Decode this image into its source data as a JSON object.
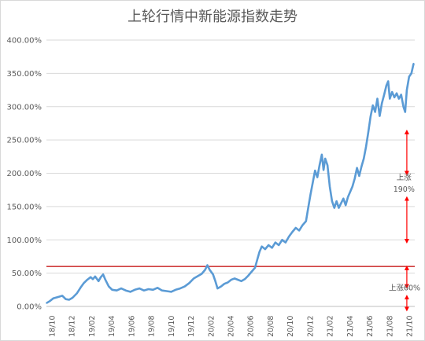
{
  "chart_data": {
    "type": "line",
    "title": "上轮行情中新能源指数走势",
    "xlabel": "",
    "ylabel": "",
    "ylim": [
      0,
      400
    ],
    "y_ticks": [
      "0.00%",
      "50.00%",
      "100.00%",
      "150.00%",
      "200.00%",
      "250.00%",
      "300.00%",
      "350.00%",
      "400.00%"
    ],
    "y_tick_values": [
      0,
      50,
      100,
      150,
      200,
      250,
      300,
      350,
      400
    ],
    "x_ticks": [
      "18/10",
      "18/12",
      "19/02",
      "19/04",
      "19/06",
      "19/08",
      "19/10",
      "19/12",
      "20/02",
      "20/04",
      "20/06",
      "20/08",
      "20/10",
      "20/12",
      "21/02",
      "21/04",
      "21/06",
      "21/08",
      "21/10"
    ],
    "grid": "horizontal",
    "legend": "none",
    "colors": {
      "line": "#5b9bd5",
      "reference": "#c00000",
      "arrow": "#ff0000",
      "grid": "#d9d9d9"
    },
    "series": [
      {
        "values": [
          {
            "x": 0,
            "y": 5
          },
          {
            "x": 0.3,
            "y": 8
          },
          {
            "x": 0.6,
            "y": 12
          },
          {
            "x": 1.0,
            "y": 14
          },
          {
            "x": 1.4,
            "y": 16
          },
          {
            "x": 1.7,
            "y": 11
          },
          {
            "x": 2.0,
            "y": 10
          },
          {
            "x": 2.3,
            "y": 13
          },
          {
            "x": 2.7,
            "y": 20
          },
          {
            "x": 3.0,
            "y": 28
          },
          {
            "x": 3.3,
            "y": 35
          },
          {
            "x": 3.6,
            "y": 40
          },
          {
            "x": 3.9,
            "y": 44
          },
          {
            "x": 4.1,
            "y": 41
          },
          {
            "x": 4.3,
            "y": 45
          },
          {
            "x": 4.6,
            "y": 38
          },
          {
            "x": 4.8,
            "y": 44
          },
          {
            "x": 5.0,
            "y": 48
          },
          {
            "x": 5.2,
            "y": 40
          },
          {
            "x": 5.5,
            "y": 30
          },
          {
            "x": 5.8,
            "y": 25
          },
          {
            "x": 6.2,
            "y": 24
          },
          {
            "x": 6.6,
            "y": 27
          },
          {
            "x": 7.0,
            "y": 24
          },
          {
            "x": 7.4,
            "y": 22
          },
          {
            "x": 7.8,
            "y": 25
          },
          {
            "x": 8.2,
            "y": 27
          },
          {
            "x": 8.6,
            "y": 24
          },
          {
            "x": 9.0,
            "y": 26
          },
          {
            "x": 9.4,
            "y": 25
          },
          {
            "x": 9.8,
            "y": 28
          },
          {
            "x": 10.2,
            "y": 24
          },
          {
            "x": 10.6,
            "y": 23
          },
          {
            "x": 11.0,
            "y": 22
          },
          {
            "x": 11.4,
            "y": 25
          },
          {
            "x": 11.8,
            "y": 27
          },
          {
            "x": 12.2,
            "y": 30
          },
          {
            "x": 12.6,
            "y": 35
          },
          {
            "x": 13.0,
            "y": 42
          },
          {
            "x": 13.4,
            "y": 46
          },
          {
            "x": 13.7,
            "y": 49
          },
          {
            "x": 14.0,
            "y": 55
          },
          {
            "x": 14.2,
            "y": 62
          },
          {
            "x": 14.4,
            "y": 55
          },
          {
            "x": 14.7,
            "y": 48
          },
          {
            "x": 14.9,
            "y": 38
          },
          {
            "x": 15.1,
            "y": 27
          },
          {
            "x": 15.4,
            "y": 30
          },
          {
            "x": 15.7,
            "y": 34
          },
          {
            "x": 16.0,
            "y": 36
          },
          {
            "x": 16.3,
            "y": 40
          },
          {
            "x": 16.6,
            "y": 42
          },
          {
            "x": 16.9,
            "y": 40
          },
          {
            "x": 17.2,
            "y": 38
          },
          {
            "x": 17.5,
            "y": 41
          },
          {
            "x": 17.8,
            "y": 46
          },
          {
            "x": 18.1,
            "y": 52
          },
          {
            "x": 18.4,
            "y": 58
          },
          {
            "x": 18.6,
            "y": 70
          },
          {
            "x": 18.8,
            "y": 82
          },
          {
            "x": 19.0,
            "y": 90
          },
          {
            "x": 19.3,
            "y": 86
          },
          {
            "x": 19.6,
            "y": 92
          },
          {
            "x": 19.9,
            "y": 88
          },
          {
            "x": 20.2,
            "y": 96
          },
          {
            "x": 20.5,
            "y": 92
          },
          {
            "x": 20.8,
            "y": 100
          },
          {
            "x": 21.1,
            "y": 96
          },
          {
            "x": 21.4,
            "y": 105
          },
          {
            "x": 21.7,
            "y": 112
          },
          {
            "x": 22.0,
            "y": 118
          },
          {
            "x": 22.3,
            "y": 114
          },
          {
            "x": 22.6,
            "y": 122
          },
          {
            "x": 22.9,
            "y": 128
          },
          {
            "x": 23.1,
            "y": 148
          },
          {
            "x": 23.3,
            "y": 168
          },
          {
            "x": 23.5,
            "y": 186
          },
          {
            "x": 23.7,
            "y": 204
          },
          {
            "x": 23.9,
            "y": 194
          },
          {
            "x": 24.1,
            "y": 212
          },
          {
            "x": 24.3,
            "y": 228
          },
          {
            "x": 24.45,
            "y": 205
          },
          {
            "x": 24.6,
            "y": 222
          },
          {
            "x": 24.8,
            "y": 212
          },
          {
            "x": 25.0,
            "y": 180
          },
          {
            "x": 25.2,
            "y": 158
          },
          {
            "x": 25.4,
            "y": 148
          },
          {
            "x": 25.6,
            "y": 158
          },
          {
            "x": 25.8,
            "y": 148
          },
          {
            "x": 26.0,
            "y": 155
          },
          {
            "x": 26.2,
            "y": 162
          },
          {
            "x": 26.4,
            "y": 152
          },
          {
            "x": 26.6,
            "y": 164
          },
          {
            "x": 26.8,
            "y": 172
          },
          {
            "x": 27.0,
            "y": 180
          },
          {
            "x": 27.2,
            "y": 192
          },
          {
            "x": 27.4,
            "y": 208
          },
          {
            "x": 27.6,
            "y": 196
          },
          {
            "x": 27.8,
            "y": 210
          },
          {
            "x": 28.0,
            "y": 222
          },
          {
            "x": 28.2,
            "y": 240
          },
          {
            "x": 28.4,
            "y": 262
          },
          {
            "x": 28.6,
            "y": 285
          },
          {
            "x": 28.8,
            "y": 302
          },
          {
            "x": 29.0,
            "y": 292
          },
          {
            "x": 29.2,
            "y": 312
          },
          {
            "x": 29.4,
            "y": 286
          },
          {
            "x": 29.6,
            "y": 305
          },
          {
            "x": 29.8,
            "y": 318
          },
          {
            "x": 30.0,
            "y": 332
          },
          {
            "x": 30.15,
            "y": 338
          },
          {
            "x": 30.3,
            "y": 312
          },
          {
            "x": 30.5,
            "y": 322
          },
          {
            "x": 30.7,
            "y": 314
          },
          {
            "x": 30.9,
            "y": 320
          },
          {
            "x": 31.1,
            "y": 312
          },
          {
            "x": 31.3,
            "y": 318
          },
          {
            "x": 31.5,
            "y": 300
          },
          {
            "x": 31.65,
            "y": 292
          },
          {
            "x": 31.8,
            "y": 325
          },
          {
            "x": 32.0,
            "y": 345
          },
          {
            "x": 32.2,
            "y": 350
          },
          {
            "x": 32.4,
            "y": 365
          }
        ]
      }
    ],
    "reference_line": {
      "y": 60
    },
    "annotations": [
      {
        "text": "上涨",
        "x": 31.55,
        "y": 190
      },
      {
        "text": "190%",
        "x": 31.55,
        "y": 172
      },
      {
        "text": "上涨60%",
        "x": 31.6,
        "y": 24
      }
    ],
    "arrows": [
      {
        "x": 31.8,
        "y_from": 262,
        "y_to": 200
      },
      {
        "x": 31.8,
        "y_from": 162,
        "y_to": 98
      },
      {
        "x": 31.8,
        "y_from": 58,
        "y_to": 30
      },
      {
        "x": 31.8,
        "y_from": 14,
        "y_to": -4
      }
    ]
  }
}
